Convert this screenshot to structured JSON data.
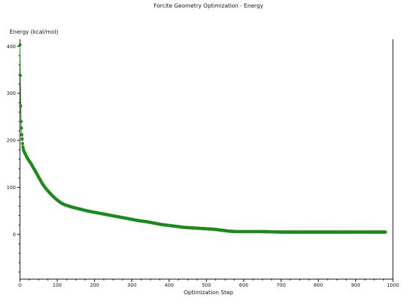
{
  "chart_data": {
    "type": "scatter",
    "title": "Forcite Geometry Optimization - Energy",
    "xlabel": "Optimization Step",
    "ylabel": "Energy (kcal/mol)",
    "xlim": [
      0,
      1000
    ],
    "ylim": [
      -95,
      415
    ],
    "x_ticks": [
      0,
      100,
      200,
      300,
      400,
      500,
      600,
      700,
      800,
      900,
      1000
    ],
    "y_ticks": [
      0,
      100,
      200,
      300,
      400
    ],
    "grid": false,
    "marker_color": "#1a8c1a",
    "series": [
      {
        "x": [
          0,
          1,
          2,
          3,
          4,
          5,
          6,
          7,
          8,
          10,
          15,
          20,
          30,
          40,
          50,
          60,
          70,
          80,
          90,
          100,
          110,
          120,
          140,
          160,
          180,
          200,
          220,
          240,
          260,
          280,
          300,
          320,
          340,
          360,
          380,
          400,
          420,
          440,
          460,
          480,
          500,
          520,
          540,
          560,
          580,
          600,
          650,
          700,
          750,
          800,
          850,
          900,
          950,
          980
        ],
        "y": [
          403,
          338,
          273,
          240,
          226,
          212,
          203,
          193,
          186,
          178,
          170,
          162,
          150,
          136,
          122,
          108,
          97,
          88,
          80,
          73,
          67,
          63,
          58,
          54,
          50,
          47,
          44,
          41,
          38,
          35,
          32,
          29,
          27,
          24,
          21,
          19,
          17,
          15,
          14,
          13,
          12,
          11,
          9,
          7,
          6,
          6,
          6,
          5,
          5,
          5,
          5,
          5,
          5,
          5
        ]
      }
    ]
  }
}
